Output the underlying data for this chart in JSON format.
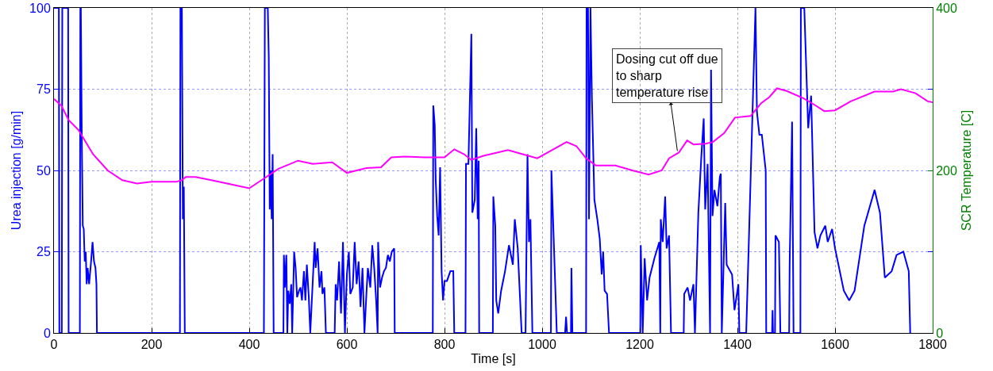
{
  "chart_data": {
    "type": "line",
    "xlabel": "Time [s]",
    "ylabel": "Urea injection [g/min]",
    "y2label": "SCR Temperature [C]",
    "xlim": [
      0,
      1800
    ],
    "xticks": [
      0,
      200,
      400,
      600,
      800,
      1000,
      1200,
      1400,
      1600,
      1800
    ],
    "ylim": [
      0,
      100
    ],
    "yticks": [
      0,
      25,
      50,
      75,
      100
    ],
    "y2lim": [
      0,
      400
    ],
    "y2ticks": [
      0,
      200,
      400
    ],
    "grid": true,
    "marker": "none",
    "line_style": "solid",
    "annotations": [
      {
        "text": "Dosing cut off due\nto sharp\ntemperature rise",
        "x": 1277,
        "y": 56
      }
    ],
    "series": [
      {
        "color": "#0000ff",
        "x": [
          0,
          10,
          11,
          16,
          17,
          29,
          30,
          53,
          54,
          55,
          57,
          59,
          61,
          63,
          65,
          67,
          69,
          72,
          76,
          79,
          82,
          85,
          87,
          88,
          258,
          259,
          262,
          264,
          266,
          268,
          430,
          432,
          438,
          440,
          442,
          444,
          446,
          448,
          450,
          470,
          471,
          473,
          476,
          478,
          480,
          483,
          486,
          488,
          492,
          495,
          498,
          502,
          505,
          508,
          512,
          515,
          518,
          522,
          525,
          534,
          536,
          540,
          544,
          548,
          550,
          554,
          557,
          575,
          577,
          580,
          584,
          588,
          592,
          596,
          600,
          604,
          607,
          612,
          616,
          620,
          624,
          628,
          632,
          636,
          640,
          643,
          648,
          652,
          656,
          660,
          663,
          664,
          668,
          672,
          676,
          680,
          684,
          688,
          692,
          697,
          698,
          776,
          777,
          780,
          782,
          785,
          788,
          791,
          794,
          797,
          800,
          805,
          812,
          818,
          820,
          843,
          844,
          849,
          855,
          857,
          862,
          865,
          868,
          870,
          871,
          899,
          900,
          904,
          906,
          910,
          916,
          924,
          932,
          940,
          944,
          950,
          958,
          966,
          970,
          973,
          976,
          980,
          1018,
          1019,
          1023,
          1030,
          1047,
          1049,
          1051,
          1059,
          1060,
          1062,
          1090,
          1091,
          1094,
          1096,
          1099,
          1102,
          1107,
          1113,
          1118,
          1122,
          1125,
          1128,
          1133,
          1137,
          1201,
          1202,
          1206,
          1210,
          1215,
          1220,
          1230,
          1240,
          1242,
          1243,
          1247,
          1252,
          1255,
          1260,
          1264,
          1290,
          1291,
          1298,
          1303,
          1310,
          1313,
          1320,
          1326,
          1331,
          1334,
          1339,
          1344,
          1346,
          1349,
          1353,
          1359,
          1364,
          1366,
          1368,
          1375,
          1378,
          1389,
          1394,
          1402,
          1404,
          1418,
          1423,
          1437,
          1440,
          1445,
          1450,
          1458,
          1459,
          1471,
          1472,
          1473,
          1477,
          1478,
          1485,
          1488,
          1506,
          1507,
          1512,
          1515,
          1529,
          1530,
          1537,
          1545,
          1551,
          1558,
          1564,
          1570,
          1580,
          1585,
          1594,
          1600,
          1618,
          1629,
          1640,
          1660,
          1681,
          1692,
          1702,
          1716,
          1726,
          1740,
          1751,
          1754
        ],
        "values": [
          100,
          100,
          0,
          0,
          100,
          100,
          0,
          0,
          100,
          100,
          60,
          33,
          32,
          22,
          25,
          15,
          20,
          15,
          22,
          28,
          22,
          20,
          15,
          0,
          0,
          100,
          100,
          35,
          45,
          0,
          0,
          100,
          100,
          85,
          38,
          50,
          35,
          55,
          0,
          0,
          24,
          14,
          24,
          0,
          13,
          9,
          15,
          0,
          25,
          20,
          11,
          13,
          14,
          10,
          19,
          10,
          21,
          11,
          0,
          28,
          20,
          26,
          14,
          19,
          12,
          14,
          0,
          0,
          15,
          10,
          22,
          6,
          28,
          0,
          18,
          25,
          12,
          14,
          28,
          15,
          22,
          8,
          20,
          0,
          12,
          20,
          14,
          27,
          20,
          10,
          0,
          28,
          14,
          17,
          19,
          20,
          24,
          22,
          25,
          26,
          0,
          0,
          70,
          64,
          47,
          36,
          30,
          51,
          19,
          10,
          16,
          16,
          19,
          19,
          0,
          0,
          52,
          52,
          92,
          37,
          41,
          63,
          35,
          53,
          0,
          0,
          42,
          33,
          10,
          6,
          13,
          19,
          27,
          21,
          35,
          26,
          0,
          0,
          55,
          28,
          35,
          0,
          0,
          50,
          32,
          0,
          0,
          5,
          0,
          0,
          20,
          0,
          0,
          100,
          100,
          35,
          100,
          72,
          41,
          35,
          29,
          18,
          25,
          13,
          12,
          0,
          0,
          27,
          0,
          23,
          10,
          17,
          23,
          28,
          0,
          35,
          28,
          42,
          26,
          30,
          0,
          0,
          12,
          14,
          10,
          15,
          0,
          37,
          54,
          66,
          38,
          52,
          0,
          81,
          36,
          44,
          39,
          48,
          49,
          0,
          40,
          21,
          18,
          7,
          15,
          0,
          0,
          26,
          100,
          68,
          61,
          61,
          50,
          0,
          0,
          7,
          0,
          0,
          30,
          28,
          0,
          0,
          21,
          65,
          0,
          0,
          100,
          100,
          63,
          73,
          31,
          26,
          30,
          33,
          28,
          32,
          26,
          13,
          10,
          13,
          33,
          44,
          37,
          17,
          19,
          24,
          25,
          19,
          0
        ]
      },
      {
        "color": "#ff00ff",
        "axis": "y2",
        "x": [
          0,
          15,
          30,
          50,
          60,
          80,
          110,
          140,
          170,
          200,
          250,
          262,
          270,
          290,
          330,
          370,
          400,
          430,
          460,
          500,
          530,
          570,
          600,
          640,
          670,
          691,
          720,
          760,
          800,
          820,
          840,
          855,
          880,
          930,
          960,
          990,
          1020,
          1050,
          1070,
          1090,
          1110,
          1150,
          1185,
          1218,
          1245,
          1260,
          1280,
          1297,
          1310,
          1335,
          1350,
          1373,
          1395,
          1427,
          1449,
          1465,
          1481,
          1500,
          1535,
          1560,
          1578,
          1600,
          1632,
          1681,
          1719,
          1735,
          1765,
          1790,
          1800
        ],
        "values": [
          288,
          280,
          262,
          250,
          240,
          220,
          200,
          188,
          184,
          186,
          186,
          188,
          192,
          192,
          187,
          182,
          178,
          190,
          202,
          212,
          208,
          210,
          197,
          203,
          204,
          216,
          217,
          216,
          216,
          226,
          220,
          213,
          218,
          225,
          220,
          215,
          225,
          235,
          230,
          215,
          206,
          206,
          200,
          195,
          200,
          215,
          222,
          237,
          232,
          233,
          235,
          246,
          265,
          267,
          283,
          290,
          301,
          298,
          289,
          280,
          273,
          274,
          285,
          297,
          297,
          300,
          295,
          285,
          284
        ]
      }
    ]
  }
}
